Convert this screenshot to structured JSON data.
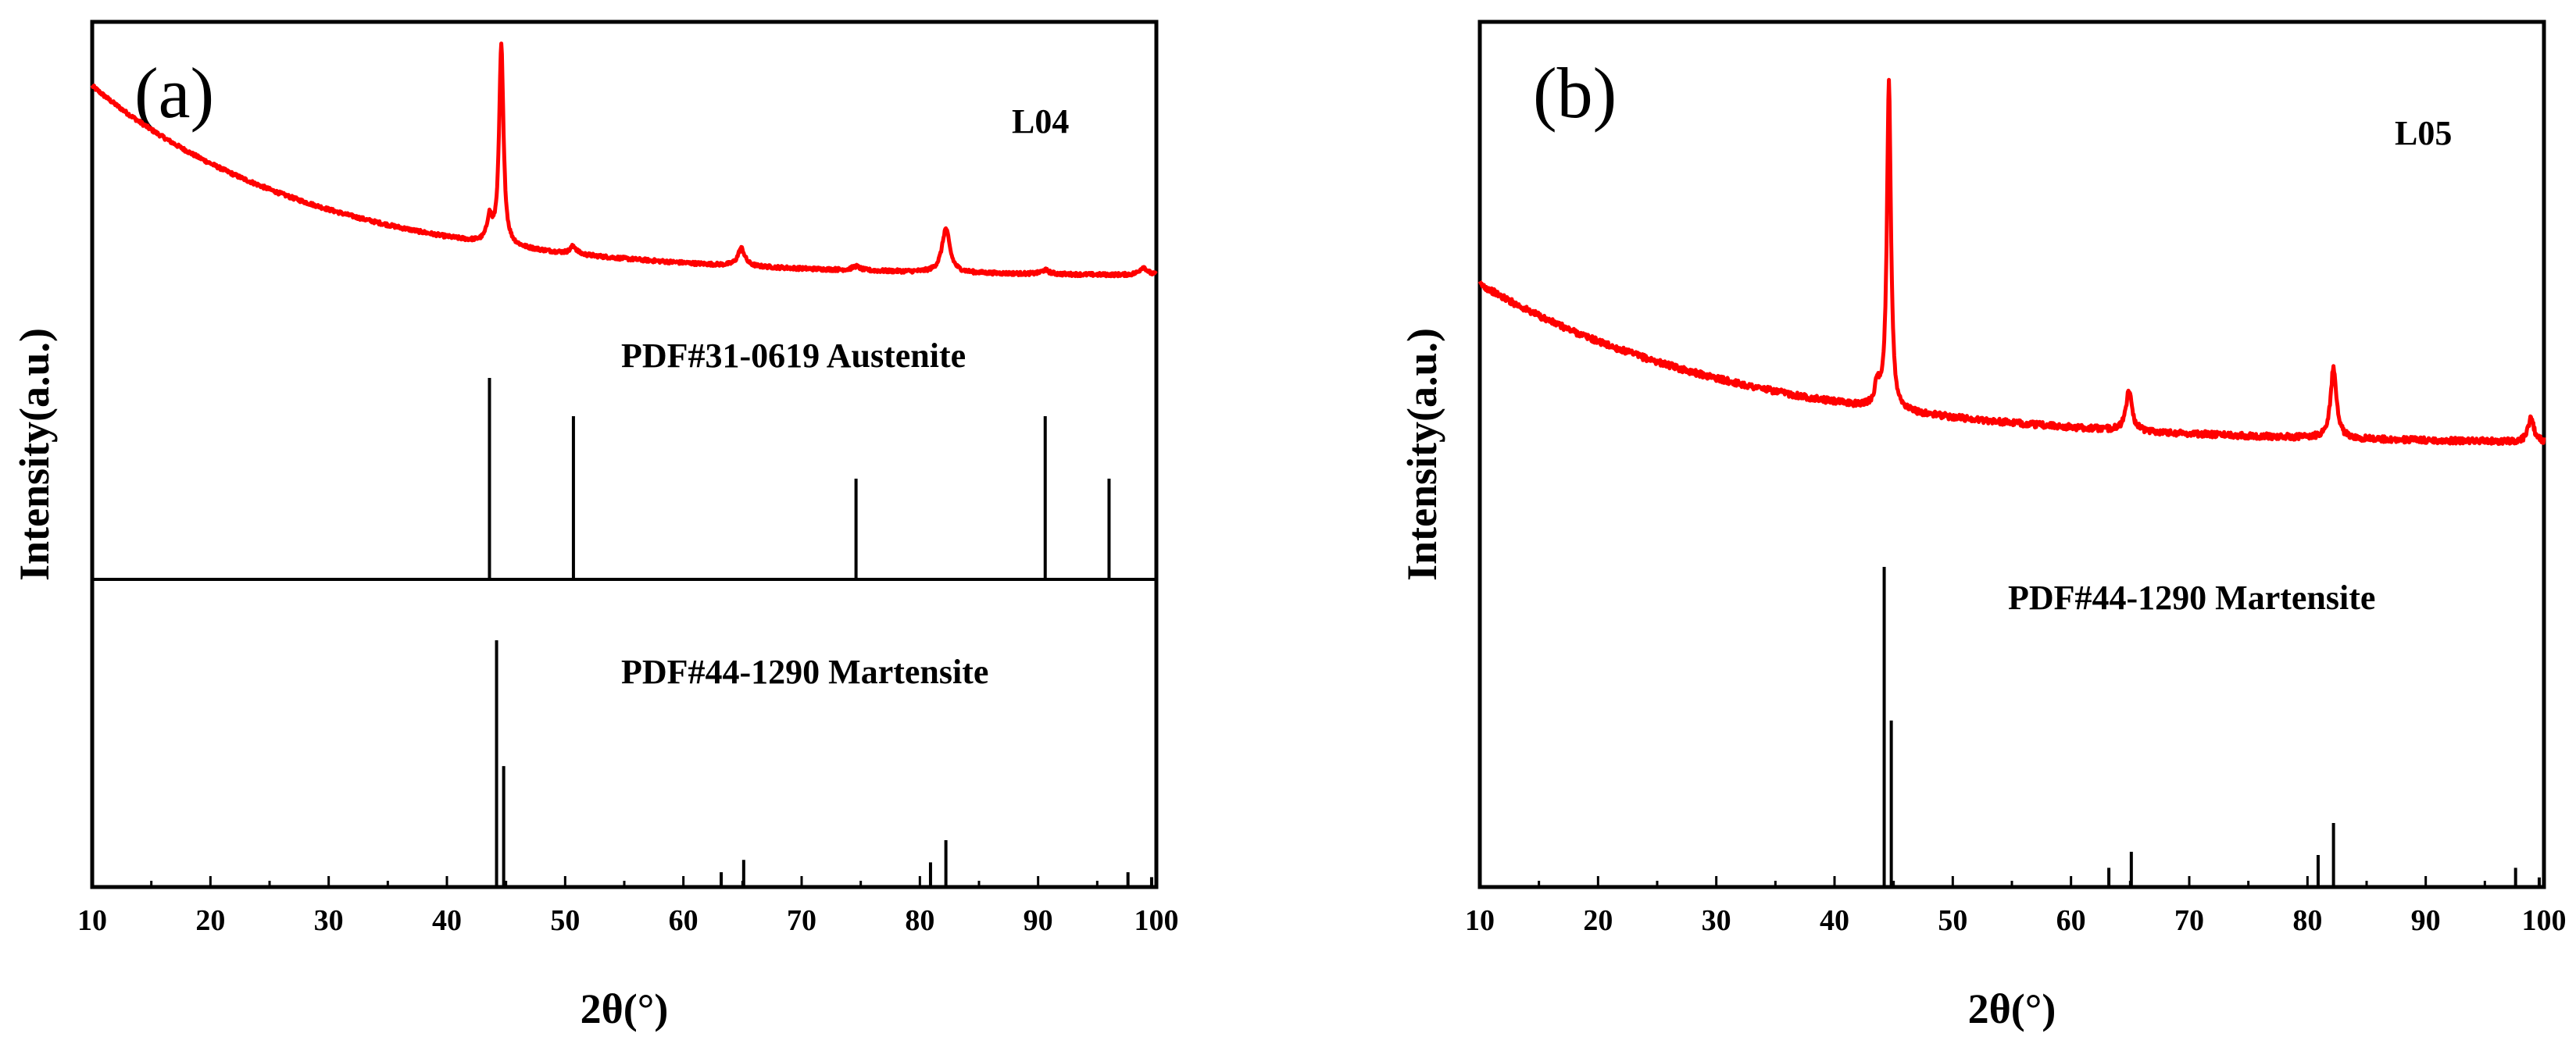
{
  "colors": {
    "pattern": "#ff0000",
    "axes": "#000000"
  },
  "chart_data": [
    {
      "type": "line",
      "panel_label": "(a)",
      "sample": "L04",
      "xlabel": "2θ(°)",
      "ylabel": "Intensity(a.u.)",
      "xlim": [
        10,
        100
      ],
      "xticks": [
        "10",
        "20",
        "30",
        "40",
        "50",
        "60",
        "70",
        "80",
        "90",
        "100"
      ],
      "series": [
        {
          "name": "L04",
          "baseline": {
            "start": 1.0,
            "end": 0.04,
            "decay": 0.13
          },
          "peaks": [
            {
              "x": 43.6,
              "h": 0.12,
              "w": 0.25
            },
            {
              "x": 44.6,
              "h": 1.0,
              "w": 0.22
            },
            {
              "x": 50.7,
              "h": 0.04,
              "w": 0.3
            },
            {
              "x": 64.9,
              "h": 0.09,
              "w": 0.35
            },
            {
              "x": 74.6,
              "h": 0.02,
              "w": 0.4
            },
            {
              "x": 82.2,
              "h": 0.22,
              "w": 0.4
            },
            {
              "x": 90.6,
              "h": 0.02,
              "w": 0.4
            },
            {
              "x": 98.9,
              "h": 0.04,
              "w": 0.4
            }
          ]
        }
      ],
      "references": [
        {
          "label": "PDF#31-0619 Austenite",
          "sticks": [
            {
              "x": 43.6,
              "h": 1.0
            },
            {
              "x": 50.7,
              "h": 0.81
            },
            {
              "x": 74.6,
              "h": 0.5
            },
            {
              "x": 90.6,
              "h": 0.81
            },
            {
              "x": 96.0,
              "h": 0.5
            }
          ]
        },
        {
          "label": "PDF#44-1290 Martensite",
          "sticks": [
            {
              "x": 44.2,
              "h": 1.0
            },
            {
              "x": 44.8,
              "h": 0.49
            },
            {
              "x": 63.2,
              "h": 0.06
            },
            {
              "x": 65.1,
              "h": 0.11
            },
            {
              "x": 80.9,
              "h": 0.1
            },
            {
              "x": 82.2,
              "h": 0.19
            },
            {
              "x": 97.6,
              "h": 0.06
            },
            {
              "x": 99.6,
              "h": 0.04
            }
          ]
        }
      ]
    },
    {
      "type": "line",
      "panel_label": "(b)",
      "sample": "L05",
      "xlabel": "2θ(°)",
      "ylabel": "Intensity(a.u.)",
      "xlim": [
        10,
        100
      ],
      "xticks": [
        "10",
        "20",
        "30",
        "40",
        "50",
        "60",
        "70",
        "80",
        "90",
        "100"
      ],
      "series": [
        {
          "name": "L05",
          "baseline": {
            "start": 0.48,
            "end": 0.0,
            "decay": 0.11
          },
          "peaks": [
            {
              "x": 43.6,
              "h": 0.06,
              "w": 0.25
            },
            {
              "x": 44.6,
              "h": 0.98,
              "w": 0.2
            },
            {
              "x": 64.9,
              "h": 0.12,
              "w": 0.3
            },
            {
              "x": 82.2,
              "h": 0.21,
              "w": 0.3
            },
            {
              "x": 98.9,
              "h": 0.07,
              "w": 0.3
            }
          ]
        }
      ],
      "references": [
        {
          "label": "PDF#44-1290 Martensite",
          "sticks": [
            {
              "x": 44.2,
              "h": 1.0
            },
            {
              "x": 44.8,
              "h": 0.52
            },
            {
              "x": 63.2,
              "h": 0.06
            },
            {
              "x": 65.1,
              "h": 0.11
            },
            {
              "x": 80.9,
              "h": 0.1
            },
            {
              "x": 82.2,
              "h": 0.2
            },
            {
              "x": 97.6,
              "h": 0.06
            },
            {
              "x": 99.6,
              "h": 0.03
            }
          ]
        }
      ]
    }
  ]
}
